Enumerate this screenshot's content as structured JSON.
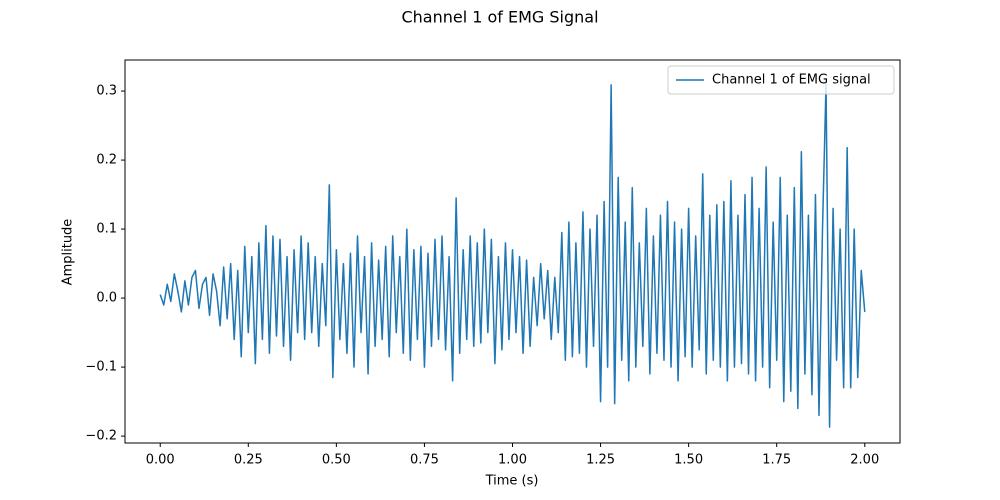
{
  "chart_data": {
    "type": "line",
    "title": "Channel 1 of EMG Signal",
    "xlabel": "Time (s)",
    "ylabel": "Amplitude",
    "x": [
      0.0,
      0.01,
      0.02,
      0.03,
      0.04,
      0.05,
      0.06,
      0.07,
      0.08,
      0.09,
      0.1,
      0.11,
      0.12,
      0.13,
      0.14,
      0.15,
      0.16,
      0.17,
      0.18,
      0.19,
      0.2,
      0.21,
      0.22,
      0.23,
      0.24,
      0.25,
      0.26,
      0.27,
      0.28,
      0.29,
      0.3,
      0.31,
      0.32,
      0.33,
      0.34,
      0.35,
      0.36,
      0.37,
      0.38,
      0.39,
      0.4,
      0.41,
      0.42,
      0.43,
      0.44,
      0.45,
      0.46,
      0.47,
      0.48,
      0.49,
      0.5,
      0.51,
      0.52,
      0.53,
      0.54,
      0.55,
      0.56,
      0.57,
      0.58,
      0.59,
      0.6,
      0.61,
      0.62,
      0.63,
      0.64,
      0.65,
      0.66,
      0.67,
      0.68,
      0.69,
      0.7,
      0.71,
      0.72,
      0.73,
      0.74,
      0.75,
      0.76,
      0.77,
      0.78,
      0.79,
      0.8,
      0.81,
      0.82,
      0.83,
      0.84,
      0.85,
      0.86,
      0.87,
      0.88,
      0.89,
      0.9,
      0.91,
      0.92,
      0.93,
      0.94,
      0.95,
      0.96,
      0.97,
      0.98,
      0.99,
      1.0,
      1.01,
      1.02,
      1.03,
      1.04,
      1.05,
      1.06,
      1.07,
      1.08,
      1.09,
      1.1,
      1.11,
      1.12,
      1.13,
      1.14,
      1.15,
      1.16,
      1.17,
      1.18,
      1.19,
      1.2,
      1.21,
      1.22,
      1.23,
      1.24,
      1.25,
      1.26,
      1.27,
      1.28,
      1.29,
      1.3,
      1.31,
      1.32,
      1.33,
      1.34,
      1.35,
      1.36,
      1.37,
      1.38,
      1.39,
      1.4,
      1.41,
      1.42,
      1.43,
      1.44,
      1.45,
      1.46,
      1.47,
      1.48,
      1.49,
      1.5,
      1.51,
      1.52,
      1.53,
      1.54,
      1.55,
      1.56,
      1.57,
      1.58,
      1.59,
      1.6,
      1.61,
      1.62,
      1.63,
      1.64,
      1.65,
      1.66,
      1.67,
      1.68,
      1.69,
      1.7,
      1.71,
      1.72,
      1.73,
      1.74,
      1.75,
      1.76,
      1.77,
      1.78,
      1.79,
      1.8,
      1.81,
      1.82,
      1.83,
      1.84,
      1.85,
      1.86,
      1.87,
      1.88,
      1.89,
      1.9,
      1.91,
      1.92,
      1.93,
      1.94,
      1.95,
      1.96,
      1.97,
      1.98,
      1.99,
      2.0
    ],
    "series": [
      {
        "name": "Channel 1 of EMG signal",
        "color": "#1f77b4",
        "values": [
          0.005,
          -0.01,
          0.02,
          -0.005,
          0.035,
          0.01,
          -0.02,
          0.025,
          -0.01,
          0.03,
          0.04,
          -0.015,
          0.02,
          0.03,
          -0.025,
          0.035,
          0.01,
          -0.04,
          0.045,
          -0.03,
          0.05,
          -0.06,
          0.04,
          -0.085,
          0.075,
          -0.05,
          0.06,
          -0.095,
          0.08,
          -0.06,
          0.105,
          -0.08,
          0.09,
          -0.055,
          0.085,
          -0.07,
          0.06,
          -0.09,
          0.07,
          -0.05,
          0.09,
          -0.06,
          0.08,
          -0.05,
          0.06,
          -0.07,
          0.05,
          -0.04,
          0.164,
          -0.115,
          0.07,
          -0.06,
          0.05,
          -0.08,
          0.065,
          -0.1,
          0.09,
          -0.05,
          0.06,
          -0.11,
          0.08,
          -0.07,
          0.055,
          -0.06,
          0.075,
          -0.085,
          0.09,
          -0.05,
          0.06,
          -0.08,
          0.1,
          -0.09,
          0.07,
          -0.06,
          0.075,
          -0.1,
          0.065,
          -0.07,
          0.085,
          -0.06,
          0.09,
          -0.075,
          0.06,
          -0.12,
          0.145,
          -0.08,
          0.07,
          -0.06,
          0.09,
          -0.07,
          0.08,
          -0.065,
          0.1,
          -0.05,
          0.085,
          -0.095,
          0.06,
          -0.075,
          0.08,
          -0.06,
          0.07,
          -0.05,
          0.06,
          -0.08,
          0.055,
          -0.07,
          0.03,
          -0.04,
          0.05,
          -0.03,
          0.04,
          -0.06,
          0.03,
          -0.05,
          0.095,
          -0.09,
          0.11,
          -0.085,
          0.08,
          -0.08,
          0.125,
          -0.1,
          0.1,
          -0.07,
          0.12,
          -0.15,
          0.14,
          -0.1,
          0.309,
          -0.153,
          0.175,
          -0.09,
          0.11,
          -0.12,
          0.16,
          -0.1,
          0.08,
          -0.07,
          0.13,
          -0.11,
          0.09,
          -0.08,
          0.12,
          -0.09,
          0.14,
          -0.1,
          0.11,
          -0.12,
          0.1,
          -0.085,
          0.13,
          -0.1,
          0.09,
          -0.075,
          0.18,
          -0.11,
          0.12,
          -0.09,
          0.135,
          -0.1,
          0.14,
          -0.12,
          0.17,
          -0.1,
          0.12,
          -0.095,
          0.15,
          -0.11,
          0.175,
          -0.12,
          0.13,
          -0.1,
          0.19,
          -0.13,
          0.11,
          -0.09,
          0.175,
          -0.15,
          0.12,
          -0.135,
          0.16,
          -0.16,
          0.212,
          -0.11,
          0.12,
          -0.14,
          0.15,
          -0.17,
          0.1,
          0.31,
          -0.187,
          0.13,
          -0.09,
          0.1,
          -0.13,
          0.218,
          -0.13,
          0.1,
          -0.115,
          0.04,
          -0.02
        ]
      }
    ],
    "xlim": [
      -0.1,
      2.1
    ],
    "ylim": [
      -0.21,
      0.345
    ],
    "xticks": [
      {
        "value": 0,
        "label": "0.00"
      },
      {
        "value": 0.25,
        "label": "0.25"
      },
      {
        "value": 0.5,
        "label": "0.50"
      },
      {
        "value": 0.75,
        "label": "0.75"
      },
      {
        "value": 1,
        "label": "1.00"
      },
      {
        "value": 1.25,
        "label": "1.25"
      },
      {
        "value": 1.5,
        "label": "1.50"
      },
      {
        "value": 1.75,
        "label": "1.75"
      },
      {
        "value": 2,
        "label": "2.00"
      }
    ],
    "yticks": [
      {
        "value": -0.2,
        "label": "−0.2"
      },
      {
        "value": -0.1,
        "label": "−0.1"
      },
      {
        "value": 0,
        "label": "0.0"
      },
      {
        "value": 0.1,
        "label": "0.1"
      },
      {
        "value": 0.2,
        "label": "0.2"
      },
      {
        "value": 0.3,
        "label": "0.3"
      }
    ],
    "legend": "upper right"
  }
}
